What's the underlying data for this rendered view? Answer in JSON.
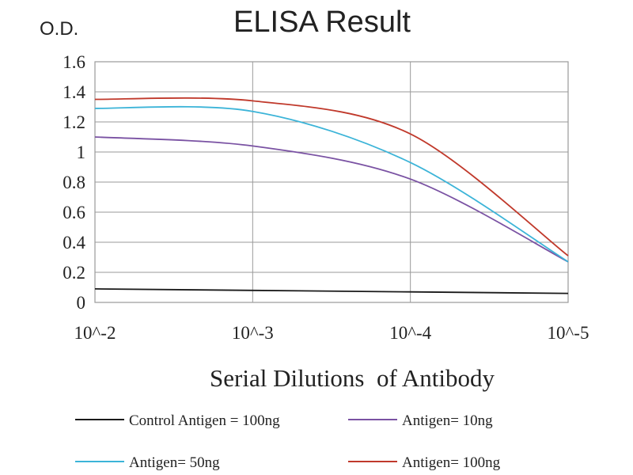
{
  "chart_data": {
    "type": "line",
    "title": "ELISA Result",
    "ylabel": "O.D.",
    "xlabel": "Serial Dilutions  of Antibody",
    "categories": [
      "10^-2",
      "10^-3",
      "10^-4",
      "10^-5"
    ],
    "ylim": [
      0,
      1.6
    ],
    "yticks": [
      "0",
      "0.2",
      "0.4",
      "0.6",
      "0.8",
      "1",
      "1.2",
      "1.4",
      "1.6"
    ],
    "grid": true,
    "legend_position": "bottom",
    "series": [
      {
        "name": "Control Antigen = 100ng",
        "color": "#1a1a1a",
        "values": [
          0.09,
          0.08,
          0.07,
          0.06
        ]
      },
      {
        "name": "Antigen= 10ng",
        "color": "#7a52a3",
        "values": [
          1.1,
          1.04,
          0.82,
          0.27
        ]
      },
      {
        "name": "Antigen= 50ng",
        "color": "#3cb4d8",
        "values": [
          1.29,
          1.27,
          0.93,
          0.27
        ]
      },
      {
        "name": "Antigen= 100ng",
        "color": "#c0392b",
        "values": [
          1.35,
          1.34,
          1.12,
          0.31
        ]
      }
    ]
  }
}
